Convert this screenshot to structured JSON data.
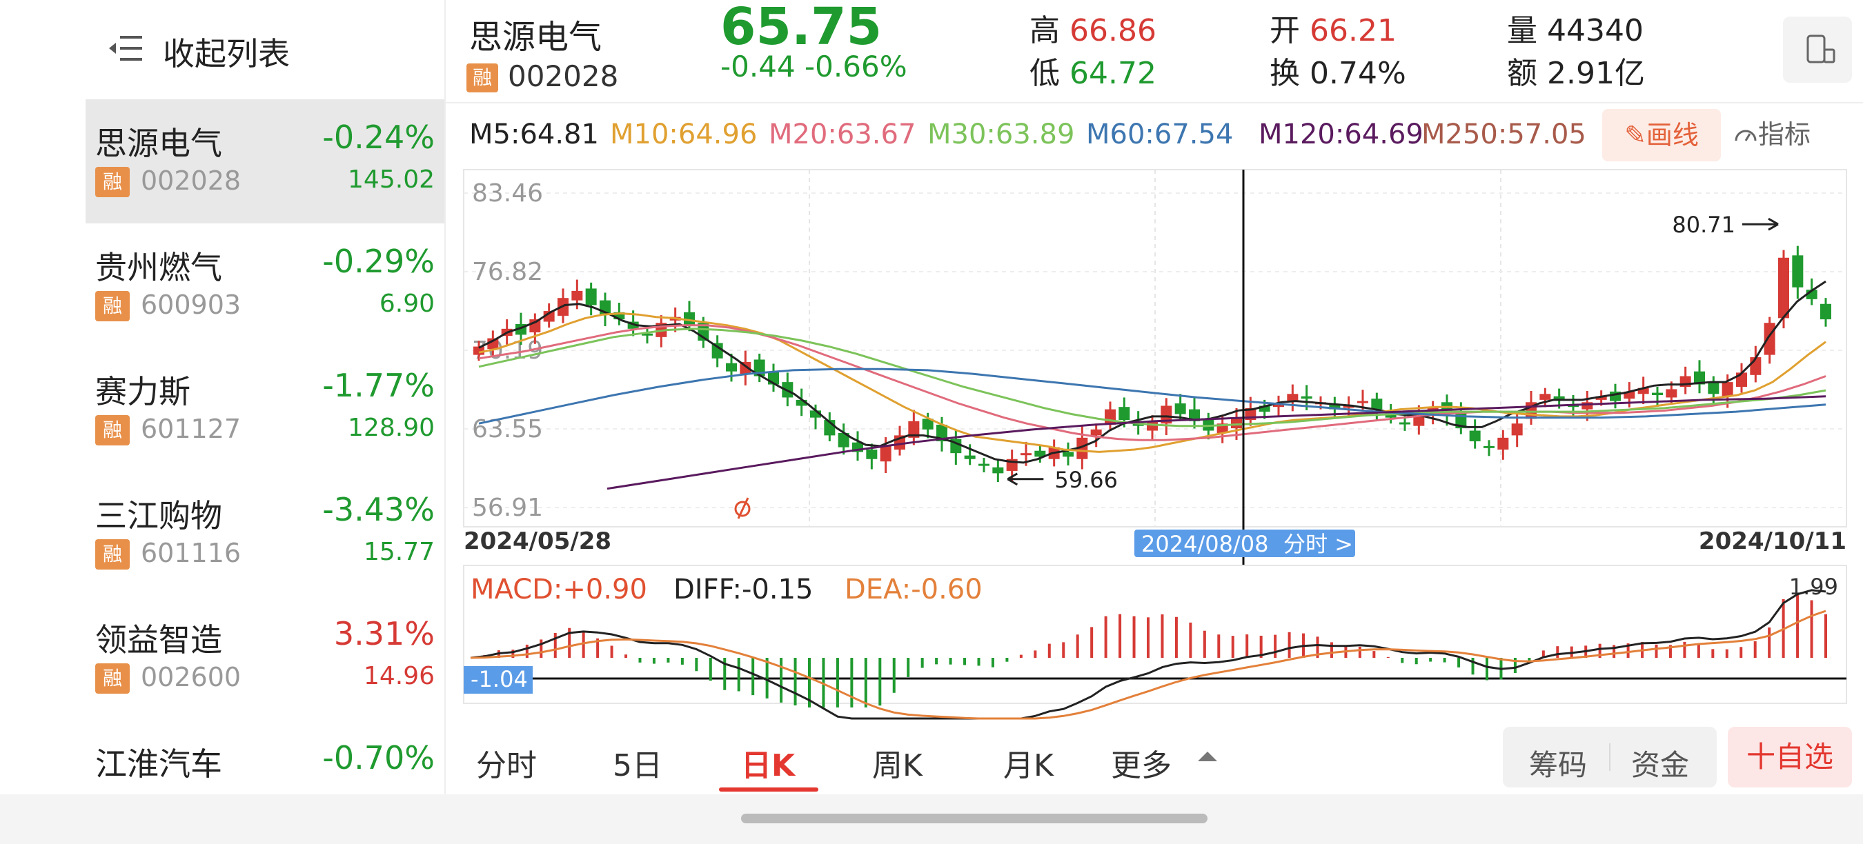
{
  "sidebar": {
    "collapse_label": "收起列表",
    "items": [
      {
        "name": "思源电气",
        "pct": "-0.24%",
        "badge": "融",
        "code": "002028",
        "price": "145.02",
        "dir": "down",
        "active": true
      },
      {
        "name": "贵州燃气",
        "pct": "-0.29%",
        "badge": "融",
        "code": "600903",
        "price": "6.90",
        "dir": "down",
        "active": false
      },
      {
        "name": "赛力斯",
        "pct": "-1.77%",
        "badge": "融",
        "code": "601127",
        "price": "128.90",
        "dir": "down",
        "active": false
      },
      {
        "name": "三江购物",
        "pct": "-3.43%",
        "badge": "融",
        "code": "601116",
        "price": "15.77",
        "dir": "down",
        "active": false
      },
      {
        "name": "领益智造",
        "pct": "3.31%",
        "badge": "融",
        "code": "002600",
        "price": "14.96",
        "dir": "up",
        "active": false
      },
      {
        "name": "江淮汽车",
        "pct": "-0.70%",
        "badge": "",
        "code": "",
        "price": "",
        "dir": "down",
        "active": false
      }
    ]
  },
  "header": {
    "name": "思源电气",
    "badge": "融",
    "code": "002028",
    "price": "65.75",
    "change": "-0.44  -0.66%",
    "high_label": "高",
    "high": "66.86",
    "low_label": "低",
    "low": "64.72",
    "open_label": "开",
    "open": "66.21",
    "turnover_label": "换",
    "turnover": "0.74%",
    "volume_label": "量",
    "volume": "44340",
    "amount_label": "额",
    "amount": "2.91亿"
  },
  "ma_bar": {
    "items": [
      {
        "text": "M5:64.81",
        "color": "#222222"
      },
      {
        "text": "M10:64.96",
        "color": "#e0a030"
      },
      {
        "text": "M20:63.67",
        "color": "#e06b7c"
      },
      {
        "text": "M30:63.89",
        "color": "#7cc35a"
      },
      {
        "text": "M60:67.54",
        "color": "#3d76b0"
      },
      {
        "text": "M120:64.69",
        "color": "#5a1a5e"
      },
      {
        "text": "M250:57.05",
        "color": "#a85a4a"
      }
    ],
    "draw_label": "✎画线",
    "indicator_label": "指标"
  },
  "chart_data": {
    "type": "candlestick",
    "y_ticks": [
      "83.46",
      "76.82",
      "70.19",
      "63.55",
      "56.91"
    ],
    "ylim": [
      56.91,
      83.46
    ],
    "x_labels": {
      "start": "2024/05/28",
      "crosshair": "2024/08/08",
      "end": "2024/10/11"
    },
    "crosshair_button": "分时 >",
    "max_label": "80.71",
    "min_label": "59.66",
    "closes": [
      70.5,
      71.2,
      72.0,
      71.5,
      72.8,
      73.5,
      74.6,
      75.2,
      74.0,
      73.2,
      72.8,
      72.0,
      71.5,
      72.5,
      73.0,
      72.3,
      71.0,
      69.5,
      68.4,
      69.2,
      68.0,
      67.3,
      66.2,
      65.5,
      64.5,
      63.0,
      62.0,
      61.6,
      61.0,
      62.2,
      63.0,
      64.2,
      63.5,
      62.5,
      61.5,
      61.0,
      60.5,
      59.8,
      61.0,
      61.5,
      61.2,
      62.0,
      61.2,
      62.8,
      63.5,
      65.2,
      64.3,
      63.8,
      64.2,
      65.5,
      64.8,
      64.2,
      63.4,
      64.0,
      64.5,
      65.3,
      65.0,
      65.7,
      66.5,
      66.1,
      65.8,
      65.2,
      65.5,
      65.9,
      65.2,
      64.5,
      64.0,
      64.6,
      65.4,
      64.8,
      63.6,
      62.5,
      62.0,
      62.8,
      64.0,
      65.8,
      66.5,
      66.0,
      65.4,
      65.8,
      66.3,
      65.9,
      66.7,
      67.0,
      66.4,
      66.9,
      68.0,
      67.3,
      66.5,
      67.5,
      68.3,
      69.6,
      72.5,
      78.0,
      75.5,
      74.5,
      72.8
    ],
    "ma_series": [
      {
        "name": "M5",
        "color": "#222222",
        "values": [
          70.4,
          71.0,
          71.7,
          72.1,
          72.6,
          73.4,
          74.0,
          74.1,
          73.8,
          73.3,
          72.7,
          72.3,
          72.2,
          72.3,
          72.4,
          71.8,
          71.0,
          70.2,
          69.4,
          68.5,
          67.8,
          67.1,
          66.5,
          65.6,
          64.6,
          63.6,
          62.8,
          62.2,
          62.1,
          62.6,
          63.0,
          63.0,
          62.8,
          62.5,
          62.0,
          61.5,
          61.0,
          60.8,
          60.7,
          61.0,
          61.5,
          61.7,
          62.0,
          62.5,
          63.4,
          64.0,
          64.3,
          64.6,
          64.6,
          64.5,
          64.3,
          64.4,
          64.7,
          65.1,
          65.2,
          65.5,
          65.8,
          65.9,
          65.8,
          65.7,
          65.6,
          65.5,
          65.3,
          65.1,
          64.8,
          64.7,
          64.6,
          64.3,
          63.9,
          63.7,
          63.7,
          64.2,
          64.8,
          65.2,
          65.7,
          66.0,
          66.0,
          66.0,
          66.2,
          66.4,
          66.6,
          66.9,
          67.2,
          67.3,
          67.3,
          67.4,
          67.5,
          67.5,
          68.1,
          69.3,
          71.3,
          72.9,
          74.3,
          75.2,
          76.0
        ]
      },
      {
        "name": "M10",
        "color": "#e0a030",
        "values": [
          70.0,
          70.3,
          70.8,
          71.3,
          71.8,
          72.4,
          72.9,
          73.2,
          73.3,
          73.2,
          73.0,
          72.9,
          72.7,
          72.5,
          72.3,
          72.0,
          71.6,
          71.0,
          70.2,
          69.4,
          68.6,
          67.8,
          67.0,
          66.2,
          65.4,
          64.7,
          64.0,
          63.4,
          62.9,
          62.7,
          62.5,
          62.3,
          62.1,
          61.8,
          61.7,
          61.6,
          61.7,
          61.8,
          62.0,
          62.3,
          62.6,
          62.9,
          63.2,
          63.5,
          63.8,
          64.1,
          64.3,
          64.4,
          64.5,
          64.6,
          64.8,
          65.0,
          65.2,
          65.3,
          65.4,
          65.4,
          65.3,
          65.1,
          64.9,
          64.8,
          64.7,
          64.6,
          64.6,
          64.7,
          64.9,
          65.2,
          65.4,
          65.6,
          65.8,
          66.0,
          66.2,
          66.4,
          66.8,
          67.5,
          68.6,
          69.8,
          70.9
        ]
      },
      {
        "name": "M20",
        "color": "#e06b7c",
        "values": [
          69.5,
          69.8,
          70.1,
          70.5,
          70.9,
          71.3,
          71.7,
          72.0,
          72.2,
          72.3,
          72.3,
          72.1,
          71.7,
          71.2,
          70.6,
          69.9,
          69.2,
          68.5,
          67.8,
          67.1,
          66.4,
          65.7,
          65.1,
          64.5,
          64.0,
          63.6,
          63.2,
          62.9,
          62.7,
          62.6,
          62.6,
          62.7,
          62.8,
          63.0,
          63.2,
          63.4,
          63.6,
          63.8,
          64.0,
          64.2,
          64.4,
          64.6,
          64.8,
          64.9,
          65.0,
          65.0,
          65.0,
          65.0,
          64.9,
          64.9,
          64.9,
          65.0,
          65.1,
          65.3,
          65.5,
          65.8,
          66.2,
          66.7,
          67.3,
          68.0
        ]
      },
      {
        "name": "M30",
        "color": "#7cc35a",
        "values": [
          68.8,
          69.3,
          69.8,
          70.3,
          70.8,
          71.3,
          71.6,
          71.9,
          72.0,
          71.9,
          71.7,
          71.4,
          71.0,
          70.5,
          69.9,
          69.2,
          68.5,
          67.8,
          67.1,
          66.5,
          65.9,
          65.3,
          64.8,
          64.4,
          64.1,
          63.9,
          63.8,
          63.8,
          63.9,
          64.0,
          64.1,
          64.3,
          64.5,
          64.7,
          64.8,
          64.9,
          65.0,
          65.0,
          65.0,
          65.0,
          65.0,
          65.0,
          65.1,
          65.2,
          65.3,
          65.5,
          65.7,
          65.9,
          66.1,
          66.4,
          66.8
        ]
      },
      {
        "name": "M60",
        "color": "#3d76b0",
        "values": [
          64.0,
          64.8,
          65.6,
          66.4,
          67.1,
          67.7,
          68.2,
          68.5,
          68.6,
          68.6,
          68.5,
          68.2,
          67.8,
          67.4,
          67.0,
          66.6,
          66.2,
          65.9,
          65.6,
          65.3,
          65.0,
          64.8,
          64.6,
          64.5,
          64.5,
          64.5,
          64.6,
          64.8,
          65.0,
          65.3,
          65.6
        ]
      },
      {
        "name": "M120",
        "color": "#5a1a5e",
        "values": [
          58.5,
          59.3,
          60.1,
          60.9,
          61.7,
          62.4,
          63.0,
          63.5,
          63.9,
          64.2,
          64.4,
          64.6,
          64.8,
          65.0,
          65.2,
          65.4,
          65.6,
          65.8,
          66.0,
          66.1,
          66.3
        ]
      }
    ],
    "macd": {
      "labels": {
        "macd": "MACD:+0.90",
        "diff": "DIFF:-0.15",
        "dea": "DEA:-0.60"
      },
      "top_tick": "1.99",
      "bottom_tick": "-1.04"
    }
  },
  "tabs": {
    "items": [
      "分时",
      "5日",
      "日K",
      "周K",
      "月K",
      "更多"
    ],
    "active_index": 2,
    "chips": [
      "筹码",
      "资金"
    ],
    "add_label": "十自选"
  },
  "colors": {
    "up": "#d63a35",
    "down": "#1f9a2f",
    "accent": "#e3372f",
    "badge": "#e8904a"
  }
}
